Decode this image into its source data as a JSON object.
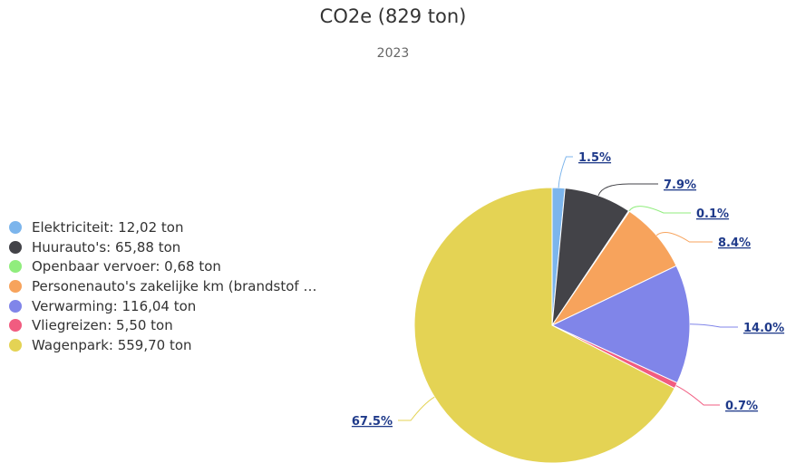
{
  "chart_data": {
    "type": "pie",
    "title": "CO2e (829 ton)",
    "subtitle": "2023",
    "slices": [
      {
        "legend": "Elektriciteit: 12,02 ton",
        "label": "1.5%",
        "value": 1.5,
        "color": "#7cb5ec"
      },
      {
        "legend": "Huurauto's: 65,88 ton",
        "label": "7.9%",
        "value": 7.9,
        "color": "#434348"
      },
      {
        "legend": "Openbaar vervoer: 0,68 ton",
        "label": "0.1%",
        "value": 0.1,
        "color": "#90ed7d"
      },
      {
        "legend": "Personenauto's zakelijke km (brandstof …",
        "label": "8.4%",
        "value": 8.4,
        "color": "#f7a35c"
      },
      {
        "legend": "Verwarming: 116,04 ton",
        "label": "14.0%",
        "value": 14.0,
        "color": "#8085e9"
      },
      {
        "legend": "Vliegreizen: 5,50 ton",
        "label": "0.7%",
        "value": 0.7,
        "color": "#f15c80"
      },
      {
        "legend": "Wagenpark: 559,70 ton",
        "label": "67.5%",
        "value": 67.5,
        "color": "#e4d354"
      }
    ],
    "legend_position": "left"
  }
}
